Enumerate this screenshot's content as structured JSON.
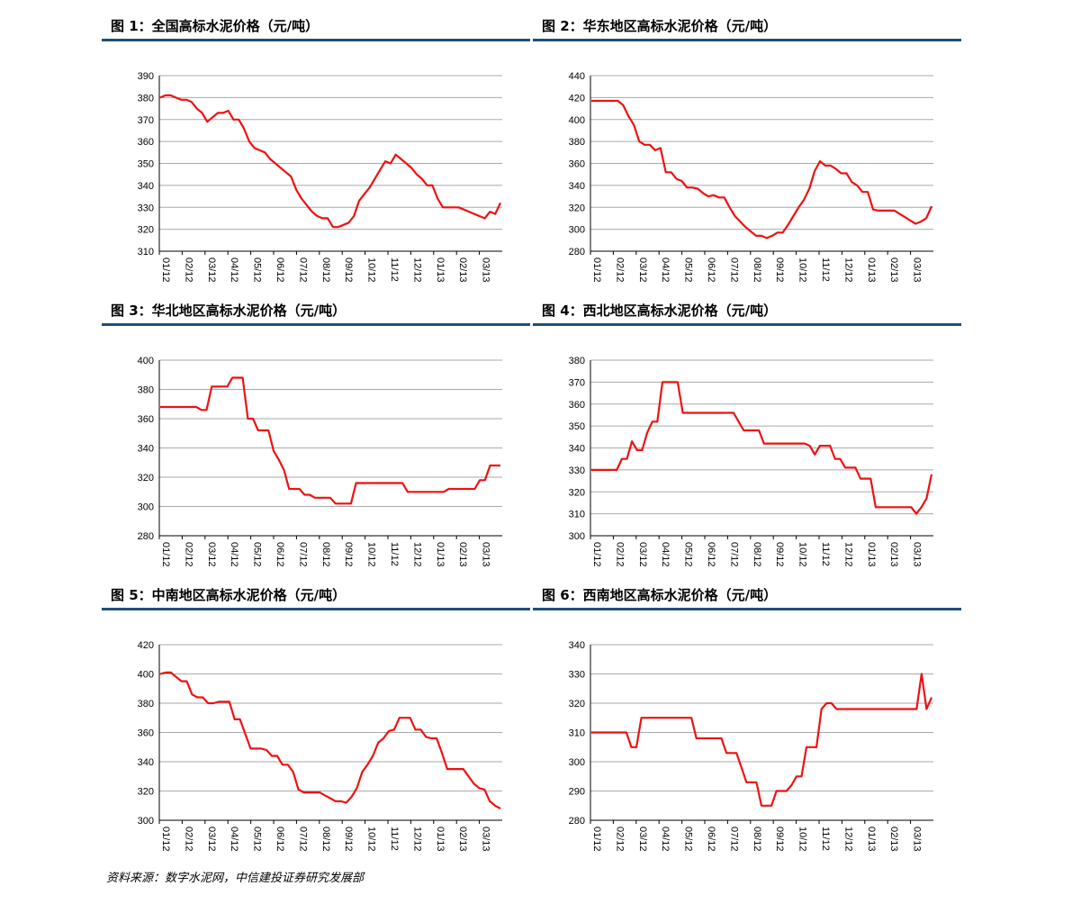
{
  "source_note": "资料来源：数字水泥网，中信建投证券研究发展部",
  "chart_data": [
    {
      "type": "line",
      "title": "图 1：全国高标水泥价格（元/吨）",
      "xlabel": "",
      "ylabel": "",
      "x_ticks": [
        "01/12",
        "02/12",
        "03/12",
        "04/12",
        "05/12",
        "06/12",
        "07/12",
        "08/12",
        "09/12",
        "10/12",
        "11/12",
        "12/12",
        "01/13",
        "02/13",
        "03/13"
      ],
      "yticks": [
        310,
        320,
        330,
        340,
        350,
        360,
        370,
        380,
        390
      ],
      "ylim": [
        310,
        390
      ],
      "grid": true,
      "color": "#ee1111",
      "values": [
        380,
        381,
        381,
        380,
        379,
        379,
        378,
        375,
        373,
        369,
        371,
        373,
        373,
        374,
        370,
        370,
        366,
        360,
        357,
        356,
        355,
        352,
        350,
        348,
        346,
        344,
        338,
        334,
        331,
        328,
        326,
        325,
        325,
        321,
        321,
        322,
        323,
        326,
        333,
        336,
        339,
        343,
        347,
        351,
        350,
        354,
        352,
        350,
        348,
        345,
        343,
        340,
        340,
        334,
        330,
        330,
        330,
        330,
        329,
        328,
        327,
        326,
        325,
        328,
        327,
        332
      ]
    },
    {
      "type": "line",
      "title": "图 2：华东地区高标水泥价格（元/吨）",
      "xlabel": "",
      "ylabel": "",
      "x_ticks": [
        "01/12",
        "02/12",
        "03/12",
        "04/12",
        "05/12",
        "06/12",
        "07/12",
        "08/12",
        "09/12",
        "10/12",
        "11/12",
        "12/12",
        "01/13",
        "02/13",
        "03/13"
      ],
      "yticks": [
        280,
        300,
        320,
        340,
        360,
        380,
        400,
        420,
        440
      ],
      "ylim": [
        280,
        440
      ],
      "grid": true,
      "color": "#ee1111",
      "values": [
        417,
        417,
        417,
        417,
        417,
        417,
        413,
        403,
        395,
        380,
        377,
        377,
        372,
        374,
        352,
        352,
        346,
        344,
        338,
        338,
        337,
        333,
        330,
        331,
        329,
        329,
        320,
        312,
        307,
        302,
        298,
        294,
        294,
        292,
        294,
        297,
        297,
        304,
        312,
        320,
        327,
        337,
        353,
        362,
        358,
        358,
        355,
        351,
        351,
        343,
        340,
        334,
        334,
        318,
        317,
        317,
        317,
        317,
        314,
        311,
        308,
        305,
        307,
        310,
        321
      ]
    },
    {
      "type": "line",
      "title": "图 3：华北地区高标水泥价格（元/吨）",
      "xlabel": "",
      "ylabel": "",
      "x_ticks": [
        "01/12",
        "02/12",
        "03/12",
        "04/12",
        "05/12",
        "06/12",
        "07/12",
        "08/12",
        "09/12",
        "10/12",
        "11/12",
        "12/12",
        "01/13",
        "02/13",
        "03/13"
      ],
      "yticks": [
        280,
        300,
        320,
        340,
        360,
        380,
        400
      ],
      "ylim": [
        280,
        400
      ],
      "grid": true,
      "color": "#ee1111",
      "values": [
        368,
        368,
        368,
        368,
        368,
        368,
        368,
        368,
        366,
        366,
        382,
        382,
        382,
        382,
        388,
        388,
        388,
        360,
        360,
        352,
        352,
        352,
        338,
        332,
        325,
        312,
        312,
        312,
        308,
        308,
        306,
        306,
        306,
        306,
        302,
        302,
        302,
        302,
        316,
        316,
        316,
        316,
        316,
        316,
        316,
        316,
        316,
        316,
        310,
        310,
        310,
        310,
        310,
        310,
        310,
        310,
        312,
        312,
        312,
        312,
        312,
        312,
        318,
        318,
        328,
        328,
        328
      ]
    },
    {
      "type": "line",
      "title": "图 4：西北地区高标水泥价格（元/吨）",
      "xlabel": "",
      "ylabel": "",
      "x_ticks": [
        "01/12",
        "02/12",
        "03/12",
        "04/12",
        "05/12",
        "06/12",
        "07/12",
        "08/12",
        "09/12",
        "10/12",
        "11/12",
        "12/12",
        "01/13",
        "02/13",
        "03/13"
      ],
      "yticks": [
        300,
        310,
        320,
        330,
        340,
        350,
        360,
        370,
        380
      ],
      "ylim": [
        300,
        380
      ],
      "grid": true,
      "color": "#ee1111",
      "values": [
        330,
        330,
        330,
        330,
        330,
        330,
        335,
        335,
        343,
        339,
        339,
        347,
        352,
        352,
        370,
        370,
        370,
        370,
        356,
        356,
        356,
        356,
        356,
        356,
        356,
        356,
        356,
        356,
        356,
        352,
        348,
        348,
        348,
        348,
        342,
        342,
        342,
        342,
        342,
        342,
        342,
        342,
        342,
        341,
        337,
        341,
        341,
        341,
        335,
        335,
        331,
        331,
        331,
        326,
        326,
        326,
        313,
        313,
        313,
        313,
        313,
        313,
        313,
        313,
        310,
        313,
        317,
        328
      ]
    },
    {
      "type": "line",
      "title": "图 5：中南地区高标水泥价格（元/吨）",
      "xlabel": "",
      "ylabel": "",
      "x_ticks": [
        "01/12",
        "02/12",
        "03/12",
        "04/12",
        "05/12",
        "06/12",
        "07/12",
        "08/12",
        "09/12",
        "10/12",
        "11/12",
        "12/12",
        "01/13",
        "02/13",
        "03/13"
      ],
      "yticks": [
        300,
        320,
        340,
        360,
        380,
        400,
        420
      ],
      "ylim": [
        300,
        420
      ],
      "grid": true,
      "color": "#ee1111",
      "values": [
        400,
        401,
        401,
        398,
        395,
        395,
        386,
        384,
        384,
        380,
        380,
        381,
        381,
        381,
        369,
        369,
        359,
        349,
        349,
        349,
        348,
        344,
        344,
        338,
        338,
        333,
        321,
        319,
        319,
        319,
        319,
        317,
        315,
        313,
        313,
        312,
        316,
        322,
        333,
        338,
        344,
        353,
        356,
        361,
        362,
        370,
        370,
        370,
        362,
        362,
        357,
        356,
        356,
        346,
        335,
        335,
        335,
        335,
        330,
        325,
        322,
        321,
        313,
        310,
        308
      ]
    },
    {
      "type": "line",
      "title": "图 6：西南地区高标水泥价格（元/吨）",
      "xlabel": "",
      "ylabel": "",
      "x_ticks": [
        "01/12",
        "02/12",
        "03/12",
        "04/12",
        "05/12",
        "06/12",
        "07/12",
        "08/12",
        "09/12",
        "10/12",
        "11/12",
        "12/12",
        "01/13",
        "02/13",
        "03/13"
      ],
      "yticks": [
        280,
        290,
        300,
        310,
        320,
        330,
        340
      ],
      "ylim": [
        280,
        340
      ],
      "grid": true,
      "color": "#ee1111",
      "values": [
        310,
        310,
        310,
        310,
        310,
        310,
        310,
        310,
        305,
        305,
        315,
        315,
        315,
        315,
        315,
        315,
        315,
        315,
        315,
        315,
        315,
        308,
        308,
        308,
        308,
        308,
        308,
        303,
        303,
        303,
        298,
        293,
        293,
        293,
        285,
        285,
        285,
        290,
        290,
        290,
        292,
        295,
        295,
        305,
        305,
        305,
        318,
        320,
        320,
        318,
        318,
        318,
        318,
        318,
        318,
        318,
        318,
        318,
        318,
        318,
        318,
        318,
        318,
        318,
        318,
        318,
        330,
        318,
        322
      ]
    }
  ]
}
